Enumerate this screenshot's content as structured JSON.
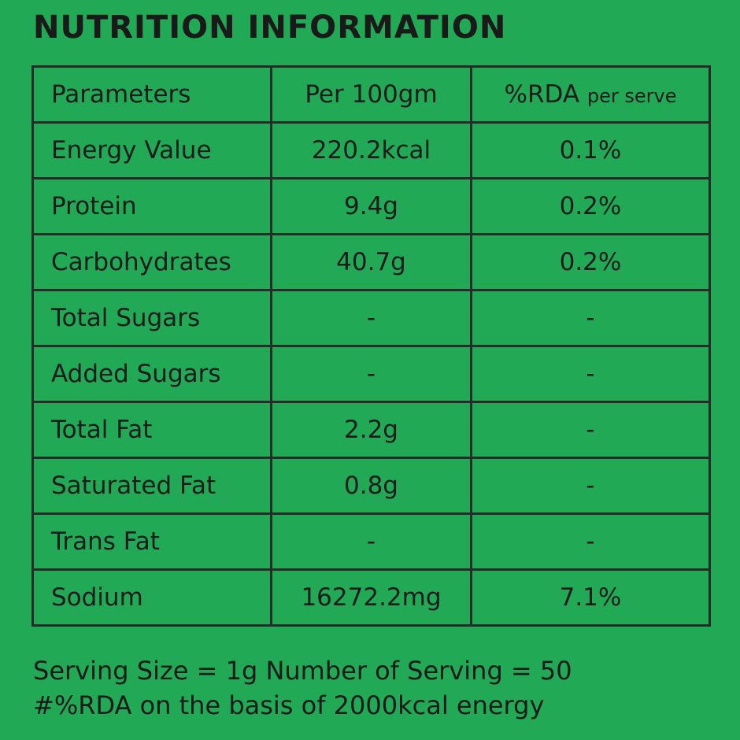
{
  "header": {
    "title": "NUTRITION INFORMATION"
  },
  "table": {
    "columns": [
      "Parameters",
      "Per 100gm",
      {
        "main": "%RDA",
        "small": "per serve"
      }
    ],
    "rows": [
      [
        "Energy Value",
        "220.2kcal",
        "0.1%"
      ],
      [
        "Protein",
        "9.4g",
        "0.2%"
      ],
      [
        "Carbohydrates",
        "40.7g",
        "0.2%"
      ],
      [
        "Total Sugars",
        "-",
        "-"
      ],
      [
        "Added Sugars",
        "-",
        "-"
      ],
      [
        "Total Fat",
        "2.2g",
        "-"
      ],
      [
        "Saturated Fat",
        "0.8g",
        "-"
      ],
      [
        "Trans Fat",
        "-",
        "-"
      ],
      [
        "Sodium",
        "16272.2mg",
        "7.1%"
      ]
    ]
  },
  "footer": [
    "Serving Size = 1g Number of Serving = 50",
    "#%RDA on the basis of 2000kcal energy"
  ]
}
